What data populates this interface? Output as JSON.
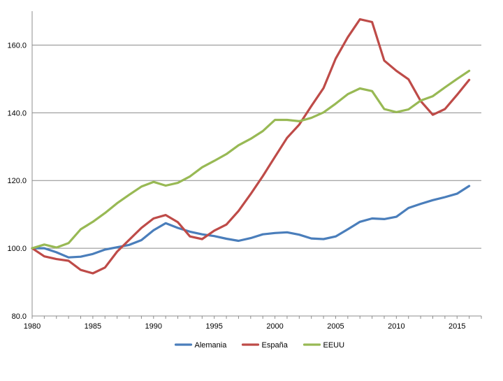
{
  "chart_data": {
    "type": "line",
    "title": "",
    "xlabel": "",
    "ylabel": "",
    "xlim": [
      1980,
      2017
    ],
    "ylim": [
      80,
      170
    ],
    "x_ticks": [
      1980,
      1985,
      1990,
      1995,
      2000,
      2005,
      2010,
      2015
    ],
    "y_ticks": [
      80,
      100,
      120,
      140,
      160
    ],
    "x_tick_labels": [
      "1980",
      "1985",
      "1990",
      "1995",
      "2000",
      "2005",
      "2010",
      "2015"
    ],
    "y_tick_labels": [
      "80.0",
      "100.0",
      "120.0",
      "140.0",
      "160.0"
    ],
    "grid": "horizontal",
    "legend_position": "bottom",
    "x": [
      1980,
      1981,
      1982,
      1983,
      1984,
      1985,
      1986,
      1987,
      1988,
      1989,
      1990,
      1991,
      1992,
      1993,
      1994,
      1995,
      1996,
      1997,
      1998,
      1999,
      2000,
      2001,
      2002,
      2003,
      2004,
      2005,
      2006,
      2007,
      2008,
      2009,
      2010,
      2011,
      2012,
      2013,
      2014,
      2015,
      2016
    ],
    "series": [
      {
        "name": "Alemania",
        "color": "#4a7ebb",
        "values": [
          100,
          100,
          98.8,
          97.3,
          97.5,
          98.3,
          99.6,
          100.3,
          101,
          102.4,
          105.3,
          107.4,
          106,
          104.9,
          104.1,
          103.6,
          102.8,
          102.2,
          103,
          104.1,
          104.5,
          104.7,
          104,
          102.9,
          102.7,
          103.5,
          105.6,
          107.8,
          108.8,
          108.6,
          109.3,
          111.9,
          113.1,
          114.2,
          115.1,
          116.1,
          118.4
        ]
      },
      {
        "name": "España",
        "color": "#be4b48",
        "values": [
          100,
          97.6,
          96.8,
          96.3,
          93.6,
          92.6,
          94.3,
          99,
          102.5,
          106,
          108.8,
          109.8,
          107.7,
          103.5,
          102.7,
          105.2,
          107,
          111,
          116,
          121.3,
          127,
          132.6,
          136.5,
          142,
          147.3,
          156,
          162.3,
          167.6,
          166.8,
          155.4,
          152.4,
          149.9,
          143.5,
          139.4,
          141.1,
          145.3,
          149.7
        ]
      },
      {
        "name": "EEUU",
        "color": "#98b954",
        "values": [
          100,
          101.1,
          100.2,
          101.5,
          105.6,
          107.8,
          110.4,
          113.3,
          115.8,
          118.2,
          119.6,
          118.5,
          119.3,
          121.2,
          123.9,
          125.8,
          127.8,
          130.4,
          132.3,
          134.6,
          137.9,
          137.9,
          137.5,
          138.5,
          140.1,
          142.7,
          145.5,
          147.2,
          146.4,
          141.1,
          140.2,
          141,
          143.6,
          144.9,
          147.5,
          150,
          152.4
        ]
      }
    ]
  }
}
